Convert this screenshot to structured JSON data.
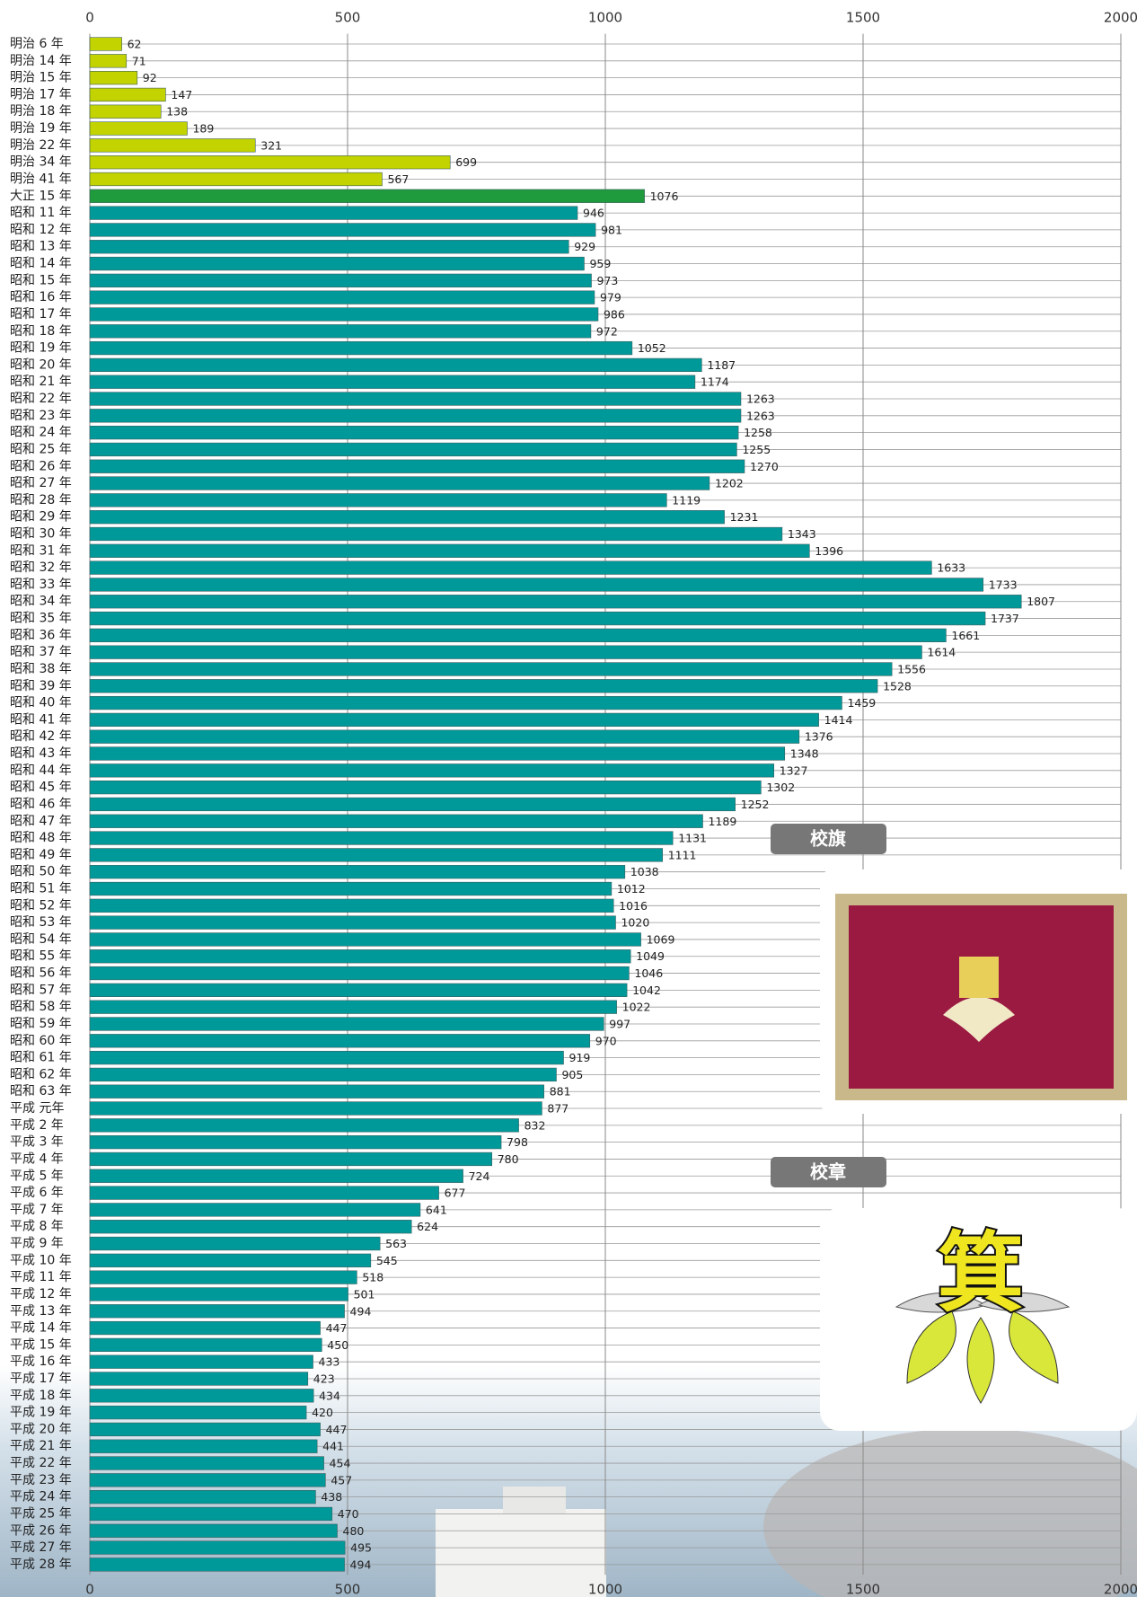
{
  "chart_data": {
    "type": "hbar",
    "categories": [
      "明治 6 年",
      "明治 14 年",
      "明治 15 年",
      "明治 17 年",
      "明治 18 年",
      "明治 19 年",
      "明治 22 年",
      "明治 34 年",
      "明治 41 年",
      "大正 15 年",
      "昭和 11 年",
      "昭和 12 年",
      "昭和 13 年",
      "昭和 14 年",
      "昭和 15 年",
      "昭和 16 年",
      "昭和 17 年",
      "昭和 18 年",
      "昭和 19 年",
      "昭和 20 年",
      "昭和 21 年",
      "昭和 22 年",
      "昭和 23 年",
      "昭和 24 年",
      "昭和 25 年",
      "昭和 26 年",
      "昭和 27 年",
      "昭和 28 年",
      "昭和 29 年",
      "昭和 30 年",
      "昭和 31 年",
      "昭和 32 年",
      "昭和 33 年",
      "昭和 34 年",
      "昭和 35 年",
      "昭和 36 年",
      "昭和 37 年",
      "昭和 38 年",
      "昭和 39 年",
      "昭和 40 年",
      "昭和 41 年",
      "昭和 42 年",
      "昭和 43 年",
      "昭和 44 年",
      "昭和 45 年",
      "昭和 46 年",
      "昭和 47 年",
      "昭和 48 年",
      "昭和 49 年",
      "昭和 50 年",
      "昭和 51 年",
      "昭和 52 年",
      "昭和 53 年",
      "昭和 54 年",
      "昭和 55 年",
      "昭和 56 年",
      "昭和 57 年",
      "昭和 58 年",
      "昭和 59 年",
      "昭和 60 年",
      "昭和 61 年",
      "昭和 62 年",
      "昭和 63 年",
      "平成 元年",
      "平成 2 年",
      "平成 3 年",
      "平成 4 年",
      "平成 5 年",
      "平成 6 年",
      "平成 7 年",
      "平成 8 年",
      "平成 9 年",
      "平成 10 年",
      "平成 11 年",
      "平成 12 年",
      "平成 13 年",
      "平成 14 年",
      "平成 15 年",
      "平成 16 年",
      "平成 17 年",
      "平成 18 年",
      "平成 19 年",
      "平成 20 年",
      "平成 21 年",
      "平成 22 年",
      "平成 23 年",
      "平成 24 年",
      "平成 25 年",
      "平成 26 年",
      "平成 27 年",
      "平成 28 年"
    ],
    "values": [
      62,
      71,
      92,
      147,
      138,
      189,
      321,
      699,
      567,
      1076,
      946,
      981,
      929,
      959,
      973,
      979,
      986,
      972,
      1052,
      1187,
      1174,
      1263,
      1263,
      1258,
      1255,
      1270,
      1202,
      1119,
      1231,
      1343,
      1396,
      1633,
      1733,
      1807,
      1737,
      1661,
      1614,
      1556,
      1528,
      1459,
      1414,
      1376,
      1348,
      1327,
      1302,
      1252,
      1189,
      1131,
      1111,
      1038,
      1012,
      1016,
      1020,
      1069,
      1049,
      1046,
      1042,
      1022,
      997,
      970,
      919,
      905,
      881,
      877,
      832,
      798,
      780,
      724,
      677,
      641,
      624,
      563,
      545,
      518,
      501,
      494,
      447,
      450,
      433,
      423,
      434,
      420,
      447,
      441,
      454,
      457,
      438,
      470,
      480,
      495,
      494
    ],
    "colors": [
      "#c3d300",
      "#c3d300",
      "#c3d300",
      "#c3d300",
      "#c3d300",
      "#c3d300",
      "#c3d300",
      "#c3d300",
      "#c3d300",
      "#1f9a3c",
      "#00999a",
      "#00999a",
      "#00999a",
      "#00999a",
      "#00999a",
      "#00999a",
      "#00999a",
      "#00999a",
      "#00999a",
      "#00999a",
      "#00999a",
      "#00999a",
      "#00999a",
      "#00999a",
      "#00999a",
      "#00999a",
      "#00999a",
      "#00999a",
      "#00999a",
      "#00999a",
      "#00999a",
      "#00999a",
      "#00999a",
      "#00999a",
      "#00999a",
      "#00999a",
      "#00999a",
      "#00999a",
      "#00999a",
      "#00999a",
      "#00999a",
      "#00999a",
      "#00999a",
      "#00999a",
      "#00999a",
      "#00999a",
      "#00999a",
      "#00999a",
      "#00999a",
      "#00999a",
      "#00999a",
      "#00999a",
      "#00999a",
      "#00999a",
      "#00999a",
      "#00999a",
      "#00999a",
      "#00999a",
      "#00999a",
      "#00999a",
      "#00999a",
      "#00999a",
      "#00999a",
      "#00999a",
      "#00999a",
      "#00999a",
      "#00999a",
      "#00999a",
      "#00999a",
      "#00999a",
      "#00999a",
      "#00999a",
      "#00999a",
      "#00999a",
      "#00999a",
      "#00999a",
      "#00999a",
      "#00999a",
      "#00999a",
      "#00999a",
      "#00999a",
      "#00999a",
      "#00999a",
      "#00999a",
      "#00999a",
      "#00999a",
      "#00999a",
      "#00999a",
      "#00999a",
      "#00999a",
      "#00999a"
    ],
    "xlim": [
      0,
      2000
    ],
    "xticks": [
      0,
      500,
      1000,
      1500,
      2000
    ],
    "grid": true
  },
  "side": {
    "flag_label": "校旗",
    "emblem_label": "校章",
    "emblem_char": "箕"
  }
}
